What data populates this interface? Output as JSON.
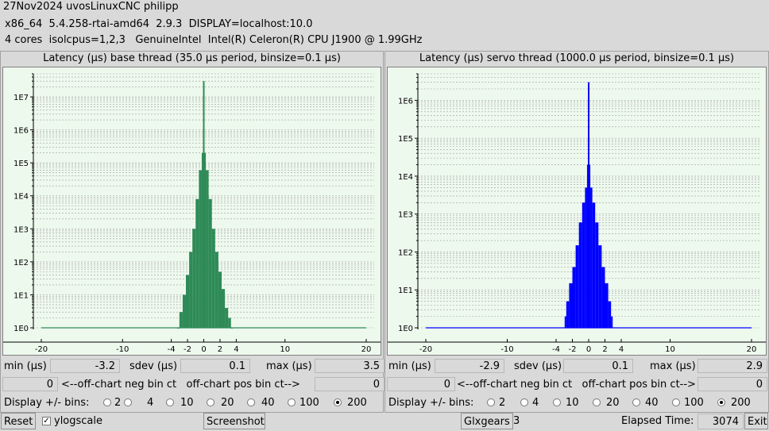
{
  "header": {
    "line1": "27Nov2024 uvosLinuxCNC philipp",
    "line2": "x86_64  5.4.258-rtai-amd64  2.9.3  DISPLAY=localhost:10.0",
    "line3": "4 cores  isolcpus=1,2,3   GenuineIntel  Intel(R) Celeron(R) CPU J1900 @ 1.99GHz"
  },
  "base": {
    "title": "Latency (µs) base thread (35.0 µs period, binsize=0.1 µs)",
    "min_label": "min (µs)",
    "min_value": "-3.2",
    "sdev_label": "sdev (µs)",
    "sdev_value": "0.1",
    "max_label": "max (µs)",
    "max_value": "3.5",
    "neg_value": "0",
    "offchart_label": "<--off-chart neg bin ct   off-chart pos bin ct-->",
    "pos_value": "0",
    "bins_label": "Display +/- bins:",
    "bins": [
      "2",
      "4",
      "10",
      "20",
      "40",
      "100",
      "200"
    ],
    "bins_selected": "200"
  },
  "servo": {
    "title": "Latency (µs) servo thread (1000.0 µs period, binsize=0.1 µs)",
    "min_label": "min (µs)",
    "min_value": "-2.9",
    "sdev_label": "sdev (µs)",
    "sdev_value": "0.1",
    "max_label": "max (µs)",
    "max_value": "2.9",
    "neg_value": "0",
    "offchart_label": "<--off-chart neg bin ct   off-chart pos bin ct-->",
    "pos_value": "0",
    "bins_label": "Display +/- bins:",
    "bins": [
      "2",
      "4",
      "10",
      "20",
      "40",
      "100",
      "200"
    ],
    "bins_selected": "200"
  },
  "bottom": {
    "reset": "Reset",
    "ylogscale": "ylogscale",
    "ylogscale_checked": true,
    "screenshot": "Screenshot",
    "glxgears": "Glxgears",
    "glxgears_value": "3",
    "elapsed_label": "Elapsed Time:",
    "elapsed_value": "3074",
    "exit": "Exit"
  },
  "chart_data": [
    {
      "type": "bar",
      "title": "Latency (µs) base thread (35.0 µs period, binsize=0.1 µs)",
      "xlabel": "",
      "ylabel": "",
      "xlim": [
        -20,
        20
      ],
      "x_ticks": [
        "-20",
        "-10",
        "-4",
        "-2",
        "0",
        "2",
        "4",
        "10",
        "20"
      ],
      "y_scale": "log",
      "y_ticks": [
        "1E0",
        "1E1",
        "1E2",
        "1E3",
        "1E4",
        "1E5",
        "1E6",
        "1E7"
      ],
      "ylim": [
        1,
        50000000
      ],
      "color": "#2e8b57",
      "x": [
        -3.2,
        -2.8,
        -2.4,
        -2.0,
        -1.6,
        -1.2,
        -0.8,
        -0.4,
        -0.1,
        0,
        0.1,
        0.4,
        0.8,
        1.2,
        1.6,
        2.0,
        2.4,
        2.8,
        3.2,
        3.5
      ],
      "values": [
        1,
        3,
        10,
        40,
        200,
        1000,
        8000,
        60000,
        200000,
        30000000,
        200000,
        60000,
        8000,
        1000,
        200,
        50,
        15,
        4,
        2,
        1
      ]
    },
    {
      "type": "bar",
      "title": "Latency (µs) servo thread (1000.0 µs period, binsize=0.1 µs)",
      "xlabel": "",
      "ylabel": "",
      "xlim": [
        -20,
        20
      ],
      "x_ticks": [
        "-20",
        "-10",
        "-4",
        "-2",
        "0",
        "2",
        "4",
        "10",
        "20"
      ],
      "y_scale": "log",
      "y_ticks": [
        "1E0",
        "1E1",
        "1E2",
        "1E3",
        "1E4",
        "1E5",
        "1E6"
      ],
      "ylim": [
        1,
        5000000
      ],
      "color": "#0000ff",
      "x": [
        -2.9,
        -2.6,
        -2.2,
        -1.8,
        -1.4,
        -1.0,
        -0.6,
        -0.3,
        -0.1,
        0,
        0.1,
        0.3,
        0.6,
        1.0,
        1.4,
        1.8,
        2.2,
        2.6,
        2.9
      ],
      "values": [
        2,
        5,
        15,
        40,
        150,
        600,
        2000,
        5000,
        20000,
        3000000,
        20000,
        5000,
        2000,
        600,
        150,
        40,
        15,
        5,
        2
      ]
    }
  ]
}
